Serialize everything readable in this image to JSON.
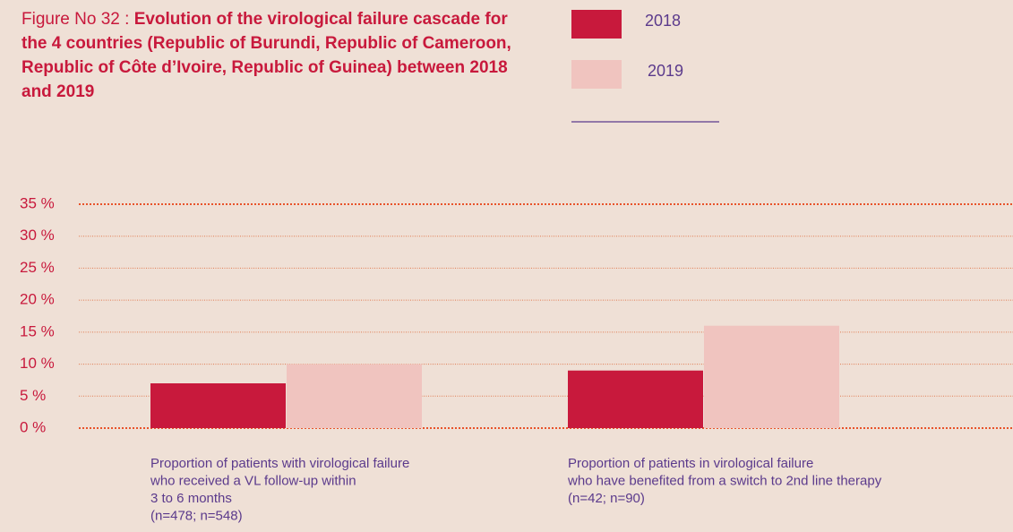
{
  "chart_data": {
    "type": "bar",
    "title_prefix": "Figure No 32 :",
    "title": "Evolution of the virological failure cascade for the 4 countries (Republic of Burundi, Republic of Cameroon, Republic of Côte d’Ivoire, Republic of Guinea) between 2018 and 2019",
    "categories": [
      [
        "Proportion of patients with virological failure",
        "who received a VL follow-up within",
        "3 to 6 months",
        "(n=478; n=548)"
      ],
      [
        "Proportion of patients in virological failure",
        "who have benefited from a switch to 2nd line therapy",
        "(n=42; n=90)"
      ]
    ],
    "series": [
      {
        "name": "2018",
        "color": "#c8193c",
        "values": [
          7,
          9
        ]
      },
      {
        "name": "2019",
        "color": "#f0c4bf",
        "values": [
          10,
          16
        ]
      }
    ],
    "ylim": [
      0,
      35
    ],
    "yticks": [
      {
        "value": 0,
        "label": "0 %"
      },
      {
        "value": 5,
        "label": "5 %"
      },
      {
        "value": 10,
        "label": "10 %"
      },
      {
        "value": 15,
        "label": "15 %"
      },
      {
        "value": 20,
        "label": "20 %"
      },
      {
        "value": 25,
        "label": "25 %"
      },
      {
        "value": 30,
        "label": "30 %"
      },
      {
        "value": 35,
        "label": "35 %"
      }
    ],
    "grid": true,
    "legend": "top"
  }
}
